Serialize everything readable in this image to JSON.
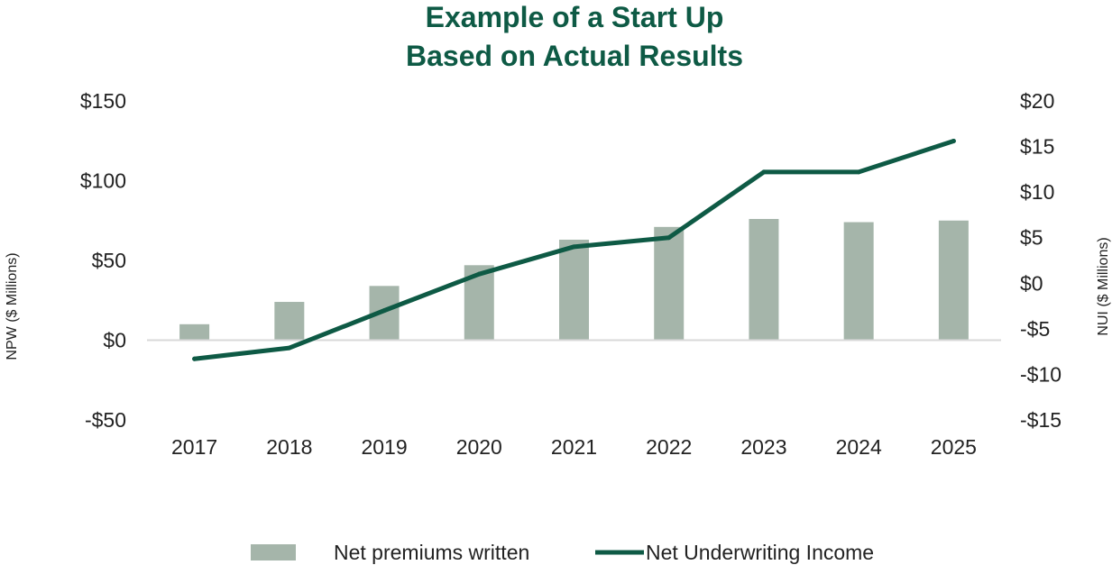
{
  "chart_data": {
    "type": "bar+line",
    "title_lines": [
      "Example of a Start Up",
      "Based on Actual Results"
    ],
    "categories": [
      "2017",
      "2018",
      "2019",
      "2020",
      "2021",
      "2022",
      "2023",
      "2024",
      "2025"
    ],
    "series": [
      {
        "name": "Net premiums written",
        "kind": "bar",
        "axis": "left",
        "color": "#a5b5aa",
        "values": [
          10,
          24,
          34,
          47,
          63,
          71,
          76,
          74,
          75
        ]
      },
      {
        "name": "Net Underwriting Income",
        "kind": "line",
        "axis": "right",
        "color": "#0e5a45",
        "values": [
          -8.3,
          -7.1,
          -3,
          1,
          4,
          5,
          12.2,
          12.2,
          15.6
        ]
      }
    ],
    "y_left": {
      "label": "NPW ($ Millions)",
      "lim": [
        -50,
        150
      ],
      "ticks": [
        150,
        100,
        50,
        0,
        -50
      ],
      "tick_labels": [
        "$150",
        "$100",
        "$50",
        "$0",
        "-$50"
      ]
    },
    "y_right": {
      "label": "NUI ($ Millions)",
      "lim": [
        -15,
        20
      ],
      "ticks": [
        20,
        15,
        10,
        5,
        0,
        -5,
        -10,
        -15
      ],
      "tick_labels": [
        "$20",
        "$15",
        "$10",
        "$5",
        "$0",
        "-$5",
        "-$10",
        "-$15"
      ]
    },
    "grid": false,
    "zero_line": true,
    "legend_position": "bottom",
    "colors": {
      "title": "#0e5a45",
      "bar": "#a5b5aa",
      "line": "#0e5a45",
      "axis_line": "#d9d9d9",
      "text": "#222222"
    }
  }
}
